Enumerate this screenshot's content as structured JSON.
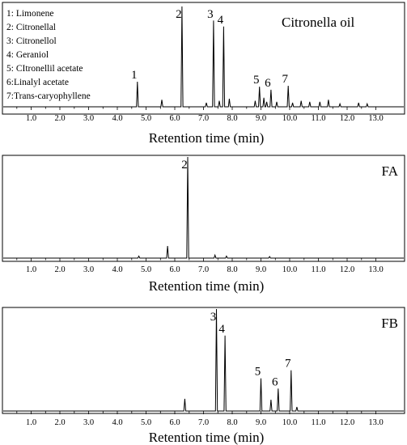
{
  "chart_data": [
    {
      "type": "line",
      "title": "Citronella oil",
      "xlabel": "Retention time (min)",
      "xlim": [
        0,
        13.5
      ],
      "ylim": [
        0,
        100
      ],
      "x_ticks": [
        "1.0",
        "2.0",
        "3.0",
        "4.0",
        "5.0",
        "6.0",
        "7.0",
        "8.0",
        "9.0",
        "10.0",
        "11.0",
        "12.0",
        "13.0"
      ],
      "legend_entries": [
        "1: Limonene",
        "2: Citronellal",
        "3: Citronellol",
        "4: Geraniol",
        "5: CItronellil acetate",
        "6:Linalyl acetate",
        "7:Trans-caryophyllene"
      ],
      "peaks": [
        {
          "x": 4.7,
          "y": 25,
          "label": "1"
        },
        {
          "x": 5.55,
          "y": 7
        },
        {
          "x": 6.25,
          "y": 100,
          "label": "2"
        },
        {
          "x": 7.1,
          "y": 4
        },
        {
          "x": 7.35,
          "y": 86,
          "label": "3"
        },
        {
          "x": 7.55,
          "y": 6
        },
        {
          "x": 7.7,
          "y": 80,
          "label": "4"
        },
        {
          "x": 7.9,
          "y": 8
        },
        {
          "x": 8.8,
          "y": 6
        },
        {
          "x": 8.95,
          "y": 20,
          "label": "5"
        },
        {
          "x": 9.1,
          "y": 9
        },
        {
          "x": 9.2,
          "y": 5
        },
        {
          "x": 9.35,
          "y": 17,
          "label": "6"
        },
        {
          "x": 9.55,
          "y": 5
        },
        {
          "x": 9.95,
          "y": 21,
          "label": "7"
        },
        {
          "x": 10.1,
          "y": 4
        },
        {
          "x": 10.4,
          "y": 6
        },
        {
          "x": 10.7,
          "y": 5
        },
        {
          "x": 11.05,
          "y": 5
        },
        {
          "x": 11.35,
          "y": 7
        },
        {
          "x": 11.75,
          "y": 3
        },
        {
          "x": 12.4,
          "y": 4
        },
        {
          "x": 12.7,
          "y": 3
        }
      ]
    },
    {
      "type": "line",
      "title": "FA",
      "xlabel": "Retention time (min)",
      "xlim": [
        0,
        13.5
      ],
      "ylim": [
        0,
        100
      ],
      "x_ticks": [
        "1.0",
        "2.0",
        "3.0",
        "4.0",
        "5.0",
        "6.0",
        "7.0",
        "8.0",
        "9.0",
        "10.0",
        "11.0",
        "12.0",
        "13.0"
      ],
      "peaks": [
        {
          "x": 4.75,
          "y": 2
        },
        {
          "x": 5.75,
          "y": 12
        },
        {
          "x": 6.45,
          "y": 100,
          "label": "2"
        },
        {
          "x": 7.4,
          "y": 3
        },
        {
          "x": 7.8,
          "y": 2
        },
        {
          "x": 9.3,
          "y": 1.5
        }
      ]
    },
    {
      "type": "line",
      "title": "FB",
      "xlabel": "Retention time (min)",
      "xlim": [
        0,
        13.5
      ],
      "ylim": [
        0,
        100
      ],
      "x_ticks": [
        "1.0",
        "2.0",
        "3.0",
        "4.0",
        "5.0",
        "6.0",
        "7.0",
        "8.0",
        "9.0",
        "10.0",
        "11.0",
        "12.0",
        "13.0"
      ],
      "peaks": [
        {
          "x": 6.35,
          "y": 12
        },
        {
          "x": 7.45,
          "y": 100,
          "label": "3"
        },
        {
          "x": 7.75,
          "y": 74,
          "label": "4"
        },
        {
          "x": 9.0,
          "y": 32,
          "label": "5"
        },
        {
          "x": 9.35,
          "y": 11
        },
        {
          "x": 9.6,
          "y": 22,
          "label": "6"
        },
        {
          "x": 10.05,
          "y": 40,
          "label": "7"
        },
        {
          "x": 10.25,
          "y": 4
        }
      ]
    }
  ]
}
